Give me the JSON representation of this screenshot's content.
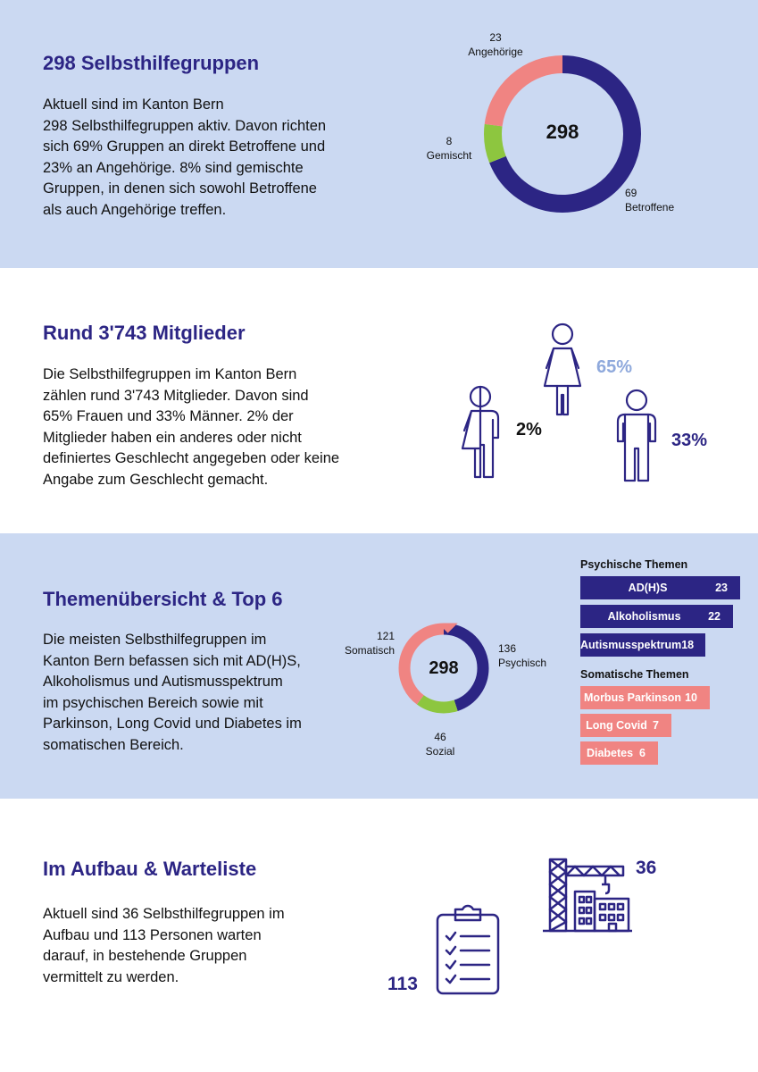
{
  "colors": {
    "navy": "#2c2584",
    "salmon": "#f08482",
    "green": "#8dc63f",
    "light_blue_bg": "#cbd9f2",
    "light_blue_text": "#8fa9dc"
  },
  "section1": {
    "title": "298 Selbsthilfegruppen",
    "text": "Aktuell sind im Kanton Bern\n298 Selbsthilfegruppen aktiv. Davon richten\nsich 69% Gruppen an direkt Betroffene und\n23% an Angehörige. 8% sind gemischte\nGruppen, in denen sich sowohl Betroffene\nals auch Angehörige treffen.",
    "donut_center": "298",
    "labels": {
      "angehoerige": "23\nAngehörige",
      "gemischt": "8\nGemischt",
      "betroffene": "69\nBetroffene"
    }
  },
  "section2": {
    "title": "Rund 3'743 Mitglieder",
    "text": "Die Selbsthilfegruppen im Kanton Bern\nzählen rund 3'743 Mitglieder. Davon sind\n65% Frauen und 33% Männer. 2% der\nMitglieder haben ein anderes oder nicht\ndefiniertes Geschlecht angegeben oder keine\nAngabe zum Geschlecht gemacht.",
    "women_pct": "65%",
    "men_pct": "33%",
    "other_pct": "2%",
    "icons": [
      "woman-icon",
      "man-icon",
      "nonbinary-person-icon"
    ]
  },
  "section3": {
    "title": "Themenübersicht & Top 6",
    "text": "Die meisten Selbsthilfegruppen im\nKanton Bern befassen sich mit AD(H)S,\nAlkoholismus und Autismusspektrum\nim psychischen Bereich sowie mit\nParkinson, Long Covid und Diabetes im\nsomatischen Bereich.",
    "donut_center": "298",
    "labels": {
      "somatisch": "121\nSomatisch",
      "psychisch": "136\nPsychisch",
      "sozial": "46\nSozial"
    },
    "psych_heading": "Psychische Themen",
    "som_heading": "Somatische Themen"
  },
  "section4": {
    "title": "Im Aufbau & Warteliste",
    "text": "Aktuell sind 36 Selbsthilfegruppen im\nAufbau und 113 Personen warten\ndarauf, in bestehende Gruppen\nvermittelt zu werden.",
    "num_aufbau": "36",
    "num_warteliste": "113",
    "icons": [
      "construction-crane-icon",
      "checklist-clipboard-icon"
    ]
  },
  "chart_data": [
    {
      "type": "pie",
      "center_label": "298",
      "categories": [
        "Betroffene",
        "Gemischt",
        "Angehörige"
      ],
      "values": [
        69,
        8,
        23
      ],
      "colors": [
        "#2c2584",
        "#8dc63f",
        "#f08482"
      ]
    },
    {
      "type": "pie",
      "center_label": "298",
      "categories": [
        "Psychisch",
        "Sozial",
        "Somatisch"
      ],
      "values": [
        136,
        46,
        121
      ],
      "colors": [
        "#2c2584",
        "#8dc63f",
        "#f08482"
      ]
    },
    {
      "type": "bar",
      "title": "Psychische Themen",
      "categories": [
        "AD(H)S",
        "Alkoholismus",
        "Autismusspektrum"
      ],
      "values": [
        23,
        22,
        18
      ],
      "color": "#2c2584"
    },
    {
      "type": "bar",
      "title": "Somatische Themen",
      "categories": [
        "Morbus Parkinson",
        "Long Covid",
        "Diabetes"
      ],
      "values": [
        10,
        7,
        6
      ],
      "color": "#f08482"
    }
  ]
}
